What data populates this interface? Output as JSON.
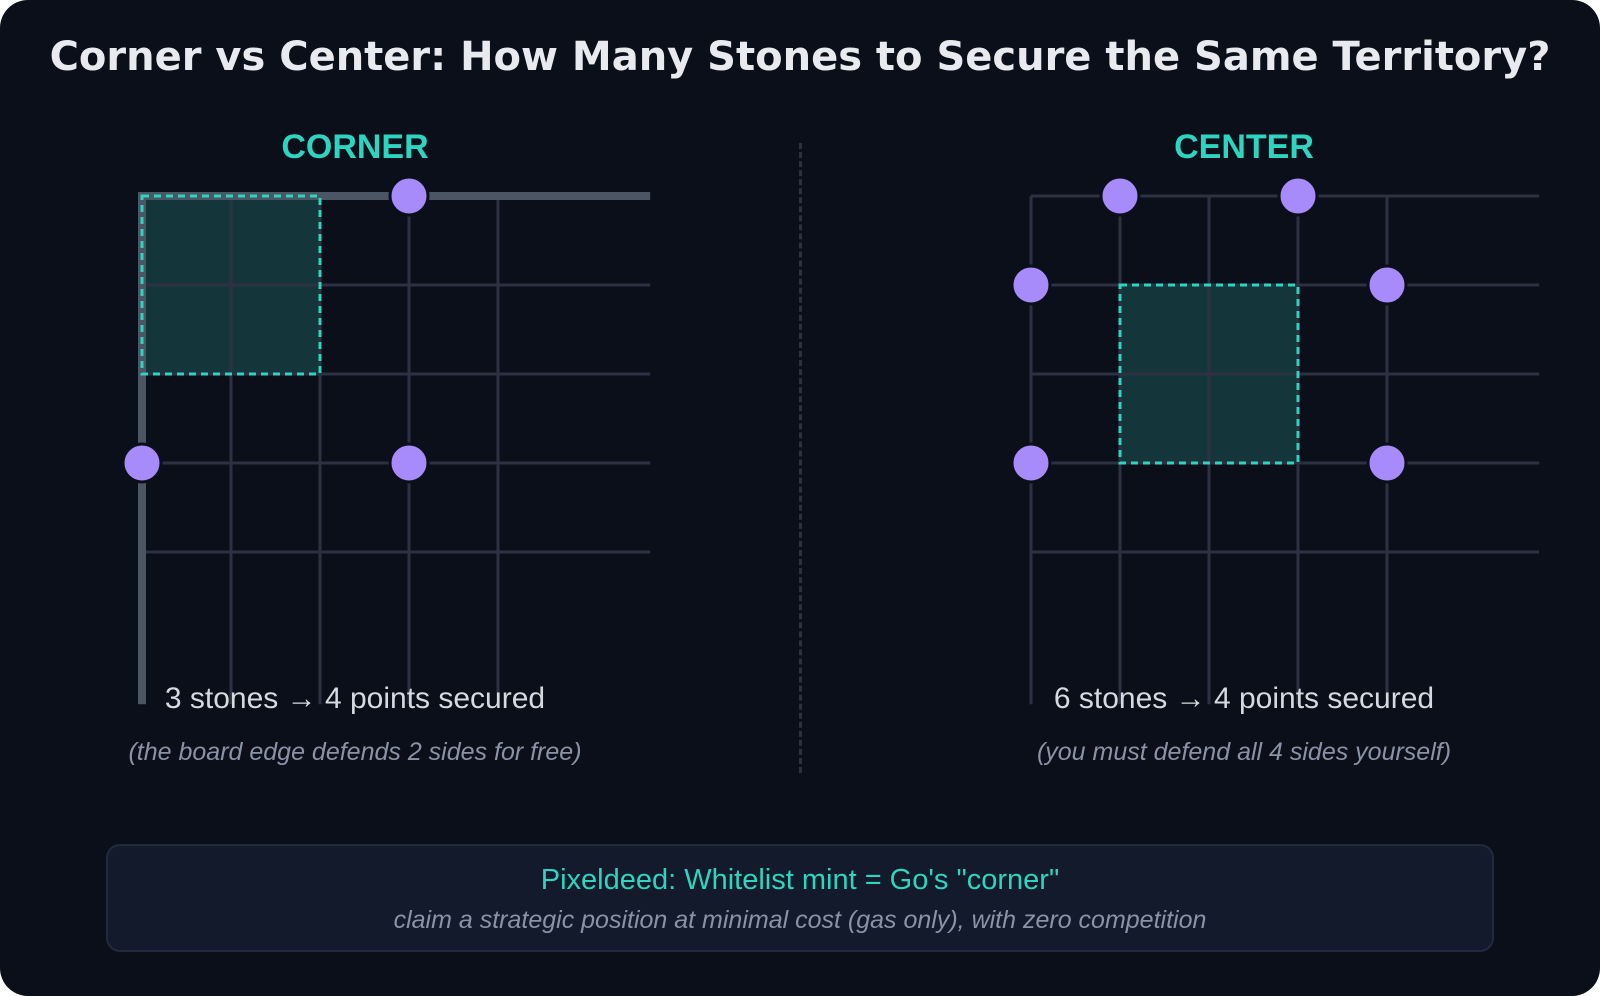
{
  "title": "Corner vs Center: How Many Stones to Secure the Same Territory?",
  "colors": {
    "background": "#0b0f19",
    "accent": "#2dd4bf",
    "stone": "#a78bfa",
    "grid": "#2c3242",
    "edge": "#4b5563",
    "territory_fill": "#14363a"
  },
  "panels": [
    {
      "label": "CORNER",
      "summary": "3 stones → 4 points secured",
      "note": "(the board edge defends 2 sides for free)",
      "stones": [
        [
          3,
          0
        ],
        [
          0,
          3
        ],
        [
          3,
          3
        ]
      ],
      "territory": {
        "from": [
          0,
          0
        ],
        "to": [
          2,
          2
        ]
      },
      "has_board_edge": true
    },
    {
      "label": "CENTER",
      "summary": "6 stones → 4 points secured",
      "note": "(you must defend all 4 sides yourself)",
      "stones": [
        [
          1,
          0
        ],
        [
          3,
          0
        ],
        [
          0,
          1
        ],
        [
          4,
          1
        ],
        [
          0,
          3
        ],
        [
          4,
          3
        ]
      ],
      "territory": {
        "from": [
          1,
          1
        ],
        "to": [
          3,
          3
        ]
      },
      "has_board_edge": false
    }
  ],
  "callout": {
    "title": "Pixeldeed: Whitelist mint = Go's \"corner\"",
    "subtitle": "claim a strategic position at minimal cost (gas only), with zero competition"
  }
}
